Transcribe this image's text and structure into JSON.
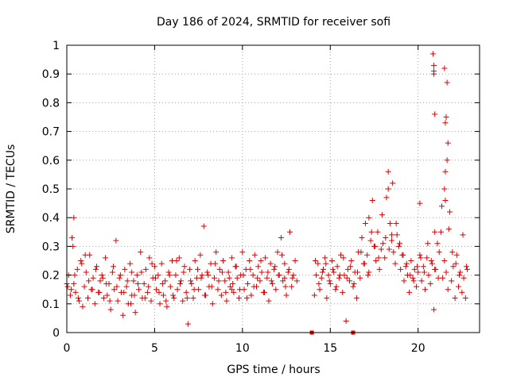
{
  "chart_data": {
    "type": "scatter",
    "title": "Day 186 of 2024, SRMTID for receiver sofi",
    "xlabel": "GPS time / hours",
    "ylabel": "SRMTID / TECUs",
    "xlim": [
      0,
      23.5
    ],
    "ylim": [
      0,
      1
    ],
    "xticks": [
      0,
      5,
      10,
      15,
      20
    ],
    "xtick_labels": [
      "0",
      "5",
      "10",
      "15",
      "20"
    ],
    "yticks": [
      0,
      0.1,
      0.2,
      0.3,
      0.4,
      0.5,
      0.6,
      0.7,
      0.8,
      0.9,
      1
    ],
    "ytick_labels": [
      "0",
      "0.1",
      "0.2",
      "0.3",
      "0.4",
      "0.5",
      "0.6",
      "0.7",
      "0.8",
      "0.9",
      "1"
    ],
    "grid": true,
    "marker": "+",
    "color": "#e00000",
    "series": [
      {
        "name": "SRMTID",
        "x": [
          0.0,
          0.1,
          0.2,
          0.3,
          0.35,
          0.4,
          0.5,
          0.6,
          0.7,
          0.8,
          0.9,
          1.0,
          1.1,
          1.2,
          1.3,
          1.4,
          1.5,
          1.6,
          1.7,
          1.8,
          1.9,
          2.0,
          2.1,
          2.2,
          2.3,
          2.4,
          2.5,
          2.6,
          2.7,
          2.8,
          2.9,
          3.0,
          3.1,
          3.2,
          3.3,
          3.4,
          3.5,
          3.6,
          3.7,
          3.8,
          3.9,
          4.0,
          4.1,
          4.2,
          4.3,
          4.4,
          4.5,
          4.6,
          4.7,
          4.8,
          4.9,
          5.0,
          5.1,
          5.2,
          5.3,
          5.4,
          5.5,
          5.6,
          5.7,
          5.8,
          5.9,
          6.0,
          6.1,
          6.2,
          6.3,
          6.4,
          6.5,
          6.6,
          6.7,
          6.8,
          6.9,
          7.0,
          7.1,
          7.2,
          7.3,
          7.4,
          7.5,
          7.6,
          7.7,
          7.8,
          7.9,
          8.0,
          8.1,
          8.2,
          8.3,
          8.4,
          8.5,
          8.6,
          8.7,
          8.8,
          8.9,
          9.0,
          9.1,
          9.2,
          9.3,
          9.4,
          9.5,
          9.6,
          9.7,
          9.8,
          9.9,
          10.0,
          10.1,
          10.2,
          10.3,
          10.4,
          10.5,
          10.6,
          10.7,
          10.8,
          10.9,
          11.0,
          11.1,
          11.2,
          11.3,
          11.4,
          11.5,
          11.6,
          11.7,
          11.8,
          11.9,
          12.0,
          12.1,
          12.2,
          12.3,
          12.4,
          12.5,
          12.6,
          12.7,
          12.8,
          12.9,
          13.0,
          13.1,
          14.1,
          14.2,
          14.3,
          14.4,
          14.5,
          14.6,
          14.7,
          14.8,
          14.9,
          15.0,
          15.1,
          15.2,
          15.3,
          15.4,
          15.5,
          15.6,
          15.7,
          15.8,
          15.9,
          16.0,
          16.1,
          16.2,
          16.3,
          16.4,
          16.5,
          16.6,
          16.7,
          16.8,
          16.9,
          17.0,
          17.1,
          17.2,
          17.3,
          17.4,
          17.5,
          17.6,
          17.7,
          17.8,
          17.9,
          18.0,
          18.1,
          18.2,
          18.3,
          18.4,
          18.5,
          18.6,
          18.7,
          18.8,
          18.9,
          19.0,
          19.1,
          19.2,
          19.3,
          19.4,
          19.5,
          19.6,
          19.7,
          19.8,
          19.9,
          20.0,
          20.1,
          20.2,
          20.3,
          20.4,
          20.5,
          20.6,
          20.7,
          20.8,
          20.9,
          21.0,
          21.1,
          21.2,
          21.3,
          21.4,
          21.5,
          21.6,
          21.7,
          21.8,
          21.9,
          22.0,
          22.1,
          22.2,
          22.3,
          22.4,
          22.5,
          22.6,
          22.7,
          22.8,
          0.05,
          0.25,
          0.45,
          0.65,
          0.85,
          1.05,
          1.25,
          1.45,
          1.65,
          1.85,
          2.05,
          2.25,
          2.45,
          2.65,
          2.85,
          3.05,
          3.25,
          3.45,
          3.65,
          3.85,
          4.05,
          4.25,
          4.45,
          4.65,
          4.85,
          5.05,
          5.25,
          5.45,
          5.65,
          5.85,
          6.05,
          6.25,
          6.45,
          6.65,
          6.85,
          7.05,
          7.25,
          7.45,
          7.65,
          7.85,
          8.05,
          8.25,
          8.45,
          8.65,
          8.85,
          9.05,
          9.25,
          9.45,
          9.65,
          9.85,
          10.05,
          10.25,
          10.45,
          10.65,
          10.85,
          11.05,
          11.25,
          11.45,
          11.65,
          11.85,
          12.05,
          12.25,
          12.45,
          12.65,
          12.85,
          14.15,
          14.35,
          14.55,
          14.75,
          14.95,
          15.15,
          15.35,
          15.55,
          15.75,
          15.95,
          16.15,
          16.35,
          16.55,
          16.75,
          16.95,
          17.15,
          17.35,
          17.55,
          17.75,
          17.95,
          18.15,
          18.35,
          18.55,
          18.75,
          18.95,
          19.15,
          19.35,
          19.55,
          19.75,
          19.95,
          20.15,
          20.35,
          20.55,
          20.75,
          20.95,
          21.15,
          21.35,
          21.55,
          21.75,
          21.95,
          22.15,
          22.35,
          22.55,
          22.75,
          0.4,
          3.7,
          9.4,
          12.4,
          17.2,
          18.3,
          18.5,
          20.1,
          20.9,
          20.95,
          21.5,
          21.55,
          21.6,
          21.65
        ],
        "y": [
          0.17,
          0.2,
          0.13,
          0.33,
          0.3,
          0.4,
          0.14,
          0.22,
          0.11,
          0.25,
          0.09,
          0.16,
          0.21,
          0.12,
          0.27,
          0.15,
          0.19,
          0.1,
          0.23,
          0.14,
          0.18,
          0.2,
          0.12,
          0.26,
          0.13,
          0.17,
          0.08,
          0.21,
          0.15,
          0.32,
          0.11,
          0.19,
          0.14,
          0.06,
          0.22,
          0.16,
          0.1,
          0.24,
          0.13,
          0.18,
          0.07,
          0.2,
          0.15,
          0.28,
          0.12,
          0.17,
          0.22,
          0.14,
          0.26,
          0.11,
          0.19,
          0.23,
          0.15,
          0.2,
          0.1,
          0.24,
          0.13,
          0.18,
          0.09,
          0.21,
          0.16,
          0.25,
          0.12,
          0.2,
          0.15,
          0.26,
          0.18,
          0.11,
          0.23,
          0.14,
          0.03,
          0.22,
          0.17,
          0.12,
          0.25,
          0.19,
          0.15,
          0.27,
          0.2,
          0.37,
          0.13,
          0.21,
          0.16,
          0.24,
          0.1,
          0.19,
          0.28,
          0.15,
          0.22,
          0.13,
          0.25,
          0.18,
          0.11,
          0.21,
          0.16,
          0.26,
          0.14,
          0.23,
          0.19,
          0.12,
          0.2,
          0.28,
          0.15,
          0.22,
          0.17,
          0.25,
          0.13,
          0.2,
          0.27,
          0.16,
          0.23,
          0.18,
          0.21,
          0.14,
          0.26,
          0.19,
          0.11,
          0.24,
          0.17,
          0.22,
          0.15,
          0.28,
          0.2,
          0.33,
          0.18,
          0.24,
          0.13,
          0.21,
          0.35,
          0.16,
          0.2,
          0.25,
          0.18,
          0.13,
          0.2,
          0.24,
          0.15,
          0.19,
          0.22,
          0.26,
          0.12,
          0.2,
          0.17,
          0.25,
          0.21,
          0.15,
          0.23,
          0.19,
          0.27,
          0.14,
          0.2,
          0.04,
          0.22,
          0.18,
          0.25,
          0.16,
          0.21,
          0.12,
          0.28,
          0.19,
          0.33,
          0.24,
          0.38,
          0.27,
          0.21,
          0.32,
          0.46,
          0.3,
          0.25,
          0.35,
          0.22,
          0.29,
          0.31,
          0.26,
          0.47,
          0.56,
          0.38,
          0.32,
          0.28,
          0.24,
          0.34,
          0.3,
          0.22,
          0.27,
          0.18,
          0.23,
          0.2,
          0.14,
          0.25,
          0.19,
          0.22,
          0.16,
          0.21,
          0.27,
          0.18,
          0.23,
          0.15,
          0.26,
          0.2,
          0.17,
          0.24,
          0.08,
          0.22,
          0.31,
          0.28,
          0.35,
          0.19,
          0.25,
          0.21,
          0.15,
          0.42,
          0.18,
          0.23,
          0.12,
          0.27,
          0.16,
          0.21,
          0.14,
          0.19,
          0.12,
          0.22,
          0.16,
          0.15,
          0.2,
          0.12,
          0.24,
          0.27,
          0.18,
          0.15,
          0.22,
          0.14,
          0.19,
          0.17,
          0.11,
          0.23,
          0.16,
          0.2,
          0.14,
          0.18,
          0.1,
          0.13,
          0.17,
          0.21,
          0.12,
          0.16,
          0.24,
          0.19,
          0.14,
          0.17,
          0.11,
          0.2,
          0.13,
          0.25,
          0.17,
          0.21,
          0.12,
          0.18,
          0.15,
          0.22,
          0.19,
          0.13,
          0.2,
          0.16,
          0.24,
          0.18,
          0.21,
          0.14,
          0.19,
          0.17,
          0.23,
          0.15,
          0.2,
          0.12,
          0.22,
          0.16,
          0.19,
          0.25,
          0.14,
          0.21,
          0.18,
          0.23,
          0.2,
          0.27,
          0.16,
          0.22,
          0.19,
          0.25,
          0.17,
          0.21,
          0.24,
          0.18,
          0.22,
          0.16,
          0.2,
          0.26,
          0.19,
          0.23,
          0.17,
          0.21,
          0.28,
          0.24,
          0.2,
          0.35,
          0.3,
          0.26,
          0.41,
          0.33,
          0.29,
          0.52,
          0.38,
          0.31,
          0.27,
          0.24,
          0.2,
          0.18,
          0.23,
          0.26,
          0.21,
          0.31,
          0.25,
          0.22,
          0.19,
          0.44,
          0.56,
          0.36,
          0.28,
          0.24,
          0.2,
          0.34,
          0.23,
          0.17,
          0.21,
          0.15,
          0.19,
          0.4,
          0.5,
          0.34,
          0.45,
          0.93,
          0.35,
          0.5,
          0.46,
          0.75,
          0.87
        ],
        "highlighted_points": [
          {
            "x": 20.85,
            "y": 0.97
          },
          {
            "x": 20.9,
            "y": 0.91
          },
          {
            "x": 20.9,
            "y": 0.9
          },
          {
            "x": 21.5,
            "y": 0.92
          },
          {
            "x": 20.95,
            "y": 0.76
          },
          {
            "x": 21.55,
            "y": 0.73
          },
          {
            "x": 21.7,
            "y": 0.66
          },
          {
            "x": 21.65,
            "y": 0.6
          }
        ]
      }
    ],
    "gap_markers": [
      {
        "x": 13.95,
        "y": 0
      },
      {
        "x": 16.3,
        "y": 0
      }
    ]
  }
}
